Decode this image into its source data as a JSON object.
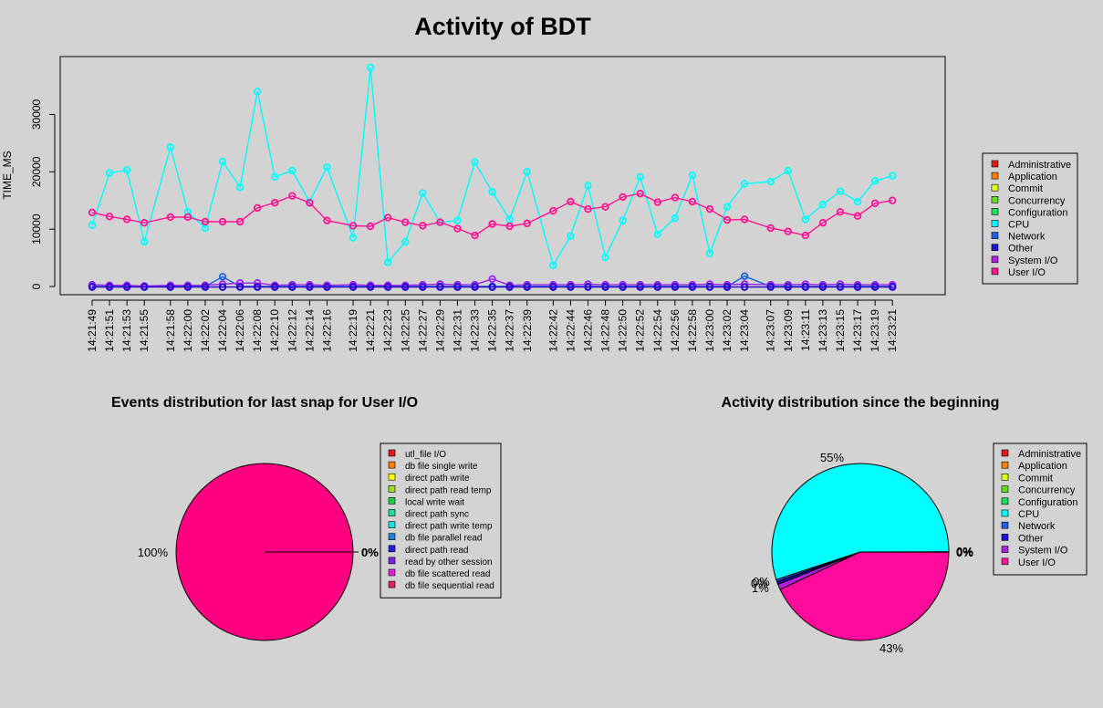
{
  "main_title": "Activity of BDT",
  "pie1_title": "Events distribution for last snap for User I/O",
  "pie2_title": "Activity distribution since the beginning",
  "chart_data": [
    {
      "type": "line",
      "title": "Activity of BDT",
      "ylabel": "TIME_MS",
      "ylim": [
        0,
        40000
      ],
      "yticks": [
        0,
        10000,
        20000,
        30000
      ],
      "x_tick_labels": [
        "14:21:49",
        "14:21:51",
        "14:21:53",
        "14:21:55",
        "14:21:58",
        "14:22:00",
        "14:22:02",
        "14:22:04",
        "14:22:06",
        "14:22:08",
        "14:22:10",
        "14:22:12",
        "14:22:14",
        "14:22:16",
        "14:22:19",
        "14:22:21",
        "14:22:23",
        "14:22:25",
        "14:22:27",
        "14:22:29",
        "14:22:31",
        "14:22:33",
        "14:22:35",
        "14:22:37",
        "14:22:39",
        "14:22:42",
        "14:22:44",
        "14:22:46",
        "14:22:48",
        "14:22:50",
        "14:22:52",
        "14:22:54",
        "14:22:56",
        "14:22:58",
        "14:23:00",
        "14:23:02",
        "14:23:04",
        "14:23:07",
        "14:23:09",
        "14:23:11",
        "14:23:13",
        "14:23:15",
        "14:23:17",
        "14:23:19",
        "14:23:21"
      ],
      "x": [
        0,
        1,
        2,
        3,
        4.5,
        5.5,
        6.5,
        7.5,
        8.5,
        9.5,
        10.5,
        11.5,
        12.5,
        13.5,
        15,
        16,
        17,
        18,
        19,
        20,
        21,
        22,
        23,
        24,
        25,
        26.5,
        27.5,
        28.5,
        29.5,
        30.5,
        31.5,
        32.5,
        33.5,
        34.5,
        35.5,
        36.5,
        37.5,
        39,
        40,
        41,
        42,
        43,
        44,
        45,
        46
      ],
      "series": [
        {
          "name": "CPU",
          "color": "#00ffff",
          "values": [
            10700,
            19800,
            20300,
            7800,
            24300,
            13000,
            10200,
            21800,
            17300,
            34000,
            19100,
            20200,
            14800,
            20800,
            8500,
            38200,
            4200,
            7800,
            16300,
            11200,
            11500,
            21700,
            16500,
            11700,
            20000,
            3700,
            8800,
            17600,
            5100,
            11500,
            19100,
            9100,
            11900,
            19400,
            5800,
            13900,
            17900,
            18300,
            20200,
            11700,
            14300,
            16600,
            14800,
            18400,
            19300
          ]
        },
        {
          "name": "User I/O",
          "color": "#ff1493",
          "values": [
            12900,
            12200,
            11700,
            11100,
            12100,
            12100,
            11300,
            11300,
            11300,
            13700,
            14600,
            15800,
            14600,
            11500,
            10600,
            10500,
            12000,
            11200,
            10600,
            11200,
            10100,
            8900,
            10900,
            10500,
            11000,
            13200,
            14800,
            13500,
            13900,
            15600,
            16200,
            14700,
            15500,
            14800,
            13500,
            11600,
            11700,
            10200,
            9600,
            8900,
            11100,
            13000,
            12300,
            14500,
            15000
          ]
        },
        {
          "name": "Network",
          "color": "#1e60e0",
          "values": [
            0,
            0,
            0,
            0,
            0,
            0,
            0,
            1700,
            0,
            0,
            0,
            0,
            0,
            0,
            0,
            0,
            0,
            0,
            0,
            0,
            0,
            0,
            0,
            0,
            0,
            0,
            0,
            0,
            0,
            0,
            0,
            0,
            0,
            0,
            0,
            0,
            1800,
            0,
            0,
            0,
            0,
            0,
            0,
            0,
            0
          ]
        },
        {
          "name": "System I/O",
          "color": "#a020f0",
          "values": [
            300,
            200,
            200,
            100,
            200,
            200,
            200,
            400,
            600,
            600,
            200,
            300,
            300,
            200,
            300,
            200,
            200,
            200,
            300,
            400,
            300,
            300,
            1300,
            200,
            300,
            300,
            300,
            400,
            300,
            300,
            300,
            300,
            300,
            300,
            400,
            300,
            400,
            300,
            300,
            400,
            300,
            400,
            300,
            300,
            300
          ]
        },
        {
          "name": "Other",
          "color": "#2000c8",
          "values": [
            -100,
            -100,
            -100,
            -100,
            -100,
            -100,
            -100,
            -100,
            -100,
            -100,
            -100,
            -100,
            -100,
            -100,
            -100,
            -100,
            -100,
            -100,
            -100,
            -100,
            -100,
            -100,
            -100,
            -100,
            -100,
            -100,
            -100,
            -100,
            -100,
            -100,
            -100,
            -100,
            -100,
            -100,
            -100,
            -100,
            -100,
            -100,
            -100,
            -100,
            -100,
            -100,
            -100,
            -100,
            -100
          ]
        }
      ],
      "legend_position": "right",
      "legend": [
        {
          "label": "Administrative",
          "color": "#e41a1c"
        },
        {
          "label": "Application",
          "color": "#ff7f00"
        },
        {
          "label": "Commit",
          "color": "#e0ff20"
        },
        {
          "label": "Concurrency",
          "color": "#60e020"
        },
        {
          "label": "Configuration",
          "color": "#20e060"
        },
        {
          "label": "CPU",
          "color": "#00ffff"
        },
        {
          "label": "Network",
          "color": "#2060e0"
        },
        {
          "label": "Other",
          "color": "#2010d0"
        },
        {
          "label": "System I/O",
          "color": "#b020e0"
        },
        {
          "label": "User I/O",
          "color": "#ff1493"
        }
      ]
    },
    {
      "type": "pie",
      "title": "Events distribution for last snap for User I/O",
      "slices": [
        {
          "label": "db file sequential read",
          "value": 100,
          "text": "100%",
          "color": "#ff0080"
        },
        {
          "label": "db file scattered read",
          "value": 0,
          "text": "0%",
          "color": "#e020e0"
        }
      ],
      "legend_position": "right",
      "legend": [
        {
          "label": "utl_file I/O",
          "color": "#e41a1c"
        },
        {
          "label": "db file single write",
          "color": "#ff7f00"
        },
        {
          "label": "direct path write",
          "color": "#ffff00"
        },
        {
          "label": "direct path read temp",
          "color": "#a0e020"
        },
        {
          "label": "local write wait",
          "color": "#20d040"
        },
        {
          "label": "direct path sync",
          "color": "#20e0a0"
        },
        {
          "label": "direct path write temp",
          "color": "#20e0e0"
        },
        {
          "label": "db file parallel read",
          "color": "#2080e0"
        },
        {
          "label": "direct path read",
          "color": "#2020e0"
        },
        {
          "label": "read by other session",
          "color": "#8020e0"
        },
        {
          "label": "db file scattered read",
          "color": "#e020e0"
        },
        {
          "label": "db file sequential read",
          "color": "#e0206a"
        }
      ]
    },
    {
      "type": "pie",
      "title": "Activity distribution since the beginning",
      "slices": [
        {
          "label": "CPU",
          "value": 55,
          "text": "55%",
          "color": "#00ffff"
        },
        {
          "label": "User I/O",
          "value": 43,
          "text": "43%",
          "color": "#ff0a9a"
        },
        {
          "label": "System I/O",
          "value": 1,
          "text": "1%",
          "color": "#b020e0"
        },
        {
          "label": "Other",
          "value": 0.5,
          "text": "0%",
          "color": "#2000c8"
        },
        {
          "label": "Network",
          "value": 0.4,
          "text": "0%",
          "color": "#2060e0"
        },
        {
          "label": "Administrative",
          "value": 0.05,
          "text": "0%",
          "color": "#e41a1c"
        }
      ],
      "legend_position": "right",
      "legend": [
        {
          "label": "Administrative",
          "color": "#e41a1c"
        },
        {
          "label": "Application",
          "color": "#ff7f00"
        },
        {
          "label": "Commit",
          "color": "#e0ff20"
        },
        {
          "label": "Concurrency",
          "color": "#60e020"
        },
        {
          "label": "Configuration",
          "color": "#20e060"
        },
        {
          "label": "CPU",
          "color": "#00ffff"
        },
        {
          "label": "Network",
          "color": "#2060e0"
        },
        {
          "label": "Other",
          "color": "#2010d0"
        },
        {
          "label": "System I/O",
          "color": "#b020e0"
        },
        {
          "label": "User I/O",
          "color": "#ff1493"
        }
      ]
    }
  ]
}
